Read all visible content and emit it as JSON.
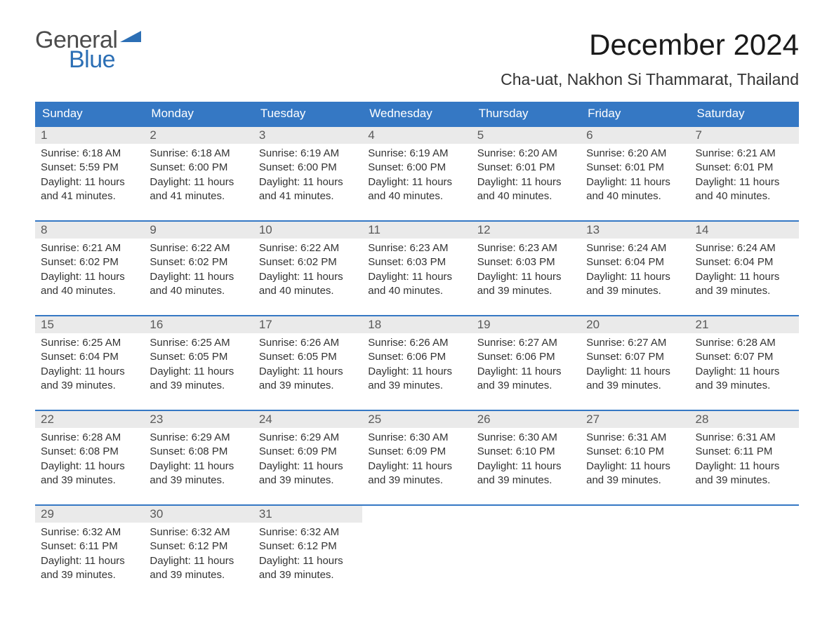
{
  "brand": {
    "part1": "General",
    "part2": "Blue",
    "flag_color": "#2c6fb5",
    "text_gray": "#4c4c4c"
  },
  "title": "December 2024",
  "location": "Cha-uat, Nakhon Si Thammarat, Thailand",
  "colors": {
    "header_bg": "#3578c4",
    "header_text": "#ffffff",
    "daynum_bg": "#eaeaea",
    "daynum_text": "#5a5a5a",
    "body_text": "#333333",
    "row_border": "#3578c4",
    "page_bg": "#ffffff"
  },
  "fonts": {
    "title_size": 42,
    "location_size": 23,
    "weekday_size": 17,
    "daynum_size": 17,
    "body_size": 15
  },
  "weekdays": [
    "Sunday",
    "Monday",
    "Tuesday",
    "Wednesday",
    "Thursday",
    "Friday",
    "Saturday"
  ],
  "days": [
    {
      "n": "1",
      "sunrise": "Sunrise: 6:18 AM",
      "sunset": "Sunset: 5:59 PM",
      "dl1": "Daylight: 11 hours",
      "dl2": "and 41 minutes."
    },
    {
      "n": "2",
      "sunrise": "Sunrise: 6:18 AM",
      "sunset": "Sunset: 6:00 PM",
      "dl1": "Daylight: 11 hours",
      "dl2": "and 41 minutes."
    },
    {
      "n": "3",
      "sunrise": "Sunrise: 6:19 AM",
      "sunset": "Sunset: 6:00 PM",
      "dl1": "Daylight: 11 hours",
      "dl2": "and 41 minutes."
    },
    {
      "n": "4",
      "sunrise": "Sunrise: 6:19 AM",
      "sunset": "Sunset: 6:00 PM",
      "dl1": "Daylight: 11 hours",
      "dl2": "and 40 minutes."
    },
    {
      "n": "5",
      "sunrise": "Sunrise: 6:20 AM",
      "sunset": "Sunset: 6:01 PM",
      "dl1": "Daylight: 11 hours",
      "dl2": "and 40 minutes."
    },
    {
      "n": "6",
      "sunrise": "Sunrise: 6:20 AM",
      "sunset": "Sunset: 6:01 PM",
      "dl1": "Daylight: 11 hours",
      "dl2": "and 40 minutes."
    },
    {
      "n": "7",
      "sunrise": "Sunrise: 6:21 AM",
      "sunset": "Sunset: 6:01 PM",
      "dl1": "Daylight: 11 hours",
      "dl2": "and 40 minutes."
    },
    {
      "n": "8",
      "sunrise": "Sunrise: 6:21 AM",
      "sunset": "Sunset: 6:02 PM",
      "dl1": "Daylight: 11 hours",
      "dl2": "and 40 minutes."
    },
    {
      "n": "9",
      "sunrise": "Sunrise: 6:22 AM",
      "sunset": "Sunset: 6:02 PM",
      "dl1": "Daylight: 11 hours",
      "dl2": "and 40 minutes."
    },
    {
      "n": "10",
      "sunrise": "Sunrise: 6:22 AM",
      "sunset": "Sunset: 6:02 PM",
      "dl1": "Daylight: 11 hours",
      "dl2": "and 40 minutes."
    },
    {
      "n": "11",
      "sunrise": "Sunrise: 6:23 AM",
      "sunset": "Sunset: 6:03 PM",
      "dl1": "Daylight: 11 hours",
      "dl2": "and 40 minutes."
    },
    {
      "n": "12",
      "sunrise": "Sunrise: 6:23 AM",
      "sunset": "Sunset: 6:03 PM",
      "dl1": "Daylight: 11 hours",
      "dl2": "and 39 minutes."
    },
    {
      "n": "13",
      "sunrise": "Sunrise: 6:24 AM",
      "sunset": "Sunset: 6:04 PM",
      "dl1": "Daylight: 11 hours",
      "dl2": "and 39 minutes."
    },
    {
      "n": "14",
      "sunrise": "Sunrise: 6:24 AM",
      "sunset": "Sunset: 6:04 PM",
      "dl1": "Daylight: 11 hours",
      "dl2": "and 39 minutes."
    },
    {
      "n": "15",
      "sunrise": "Sunrise: 6:25 AM",
      "sunset": "Sunset: 6:04 PM",
      "dl1": "Daylight: 11 hours",
      "dl2": "and 39 minutes."
    },
    {
      "n": "16",
      "sunrise": "Sunrise: 6:25 AM",
      "sunset": "Sunset: 6:05 PM",
      "dl1": "Daylight: 11 hours",
      "dl2": "and 39 minutes."
    },
    {
      "n": "17",
      "sunrise": "Sunrise: 6:26 AM",
      "sunset": "Sunset: 6:05 PM",
      "dl1": "Daylight: 11 hours",
      "dl2": "and 39 minutes."
    },
    {
      "n": "18",
      "sunrise": "Sunrise: 6:26 AM",
      "sunset": "Sunset: 6:06 PM",
      "dl1": "Daylight: 11 hours",
      "dl2": "and 39 minutes."
    },
    {
      "n": "19",
      "sunrise": "Sunrise: 6:27 AM",
      "sunset": "Sunset: 6:06 PM",
      "dl1": "Daylight: 11 hours",
      "dl2": "and 39 minutes."
    },
    {
      "n": "20",
      "sunrise": "Sunrise: 6:27 AM",
      "sunset": "Sunset: 6:07 PM",
      "dl1": "Daylight: 11 hours",
      "dl2": "and 39 minutes."
    },
    {
      "n": "21",
      "sunrise": "Sunrise: 6:28 AM",
      "sunset": "Sunset: 6:07 PM",
      "dl1": "Daylight: 11 hours",
      "dl2": "and 39 minutes."
    },
    {
      "n": "22",
      "sunrise": "Sunrise: 6:28 AM",
      "sunset": "Sunset: 6:08 PM",
      "dl1": "Daylight: 11 hours",
      "dl2": "and 39 minutes."
    },
    {
      "n": "23",
      "sunrise": "Sunrise: 6:29 AM",
      "sunset": "Sunset: 6:08 PM",
      "dl1": "Daylight: 11 hours",
      "dl2": "and 39 minutes."
    },
    {
      "n": "24",
      "sunrise": "Sunrise: 6:29 AM",
      "sunset": "Sunset: 6:09 PM",
      "dl1": "Daylight: 11 hours",
      "dl2": "and 39 minutes."
    },
    {
      "n": "25",
      "sunrise": "Sunrise: 6:30 AM",
      "sunset": "Sunset: 6:09 PM",
      "dl1": "Daylight: 11 hours",
      "dl2": "and 39 minutes."
    },
    {
      "n": "26",
      "sunrise": "Sunrise: 6:30 AM",
      "sunset": "Sunset: 6:10 PM",
      "dl1": "Daylight: 11 hours",
      "dl2": "and 39 minutes."
    },
    {
      "n": "27",
      "sunrise": "Sunrise: 6:31 AM",
      "sunset": "Sunset: 6:10 PM",
      "dl1": "Daylight: 11 hours",
      "dl2": "and 39 minutes."
    },
    {
      "n": "28",
      "sunrise": "Sunrise: 6:31 AM",
      "sunset": "Sunset: 6:11 PM",
      "dl1": "Daylight: 11 hours",
      "dl2": "and 39 minutes."
    },
    {
      "n": "29",
      "sunrise": "Sunrise: 6:32 AM",
      "sunset": "Sunset: 6:11 PM",
      "dl1": "Daylight: 11 hours",
      "dl2": "and 39 minutes."
    },
    {
      "n": "30",
      "sunrise": "Sunrise: 6:32 AM",
      "sunset": "Sunset: 6:12 PM",
      "dl1": "Daylight: 11 hours",
      "dl2": "and 39 minutes."
    },
    {
      "n": "31",
      "sunrise": "Sunrise: 6:32 AM",
      "sunset": "Sunset: 6:12 PM",
      "dl1": "Daylight: 11 hours",
      "dl2": "and 39 minutes."
    }
  ],
  "layout": {
    "start_weekday": 0,
    "total_days": 31,
    "columns": 7
  }
}
